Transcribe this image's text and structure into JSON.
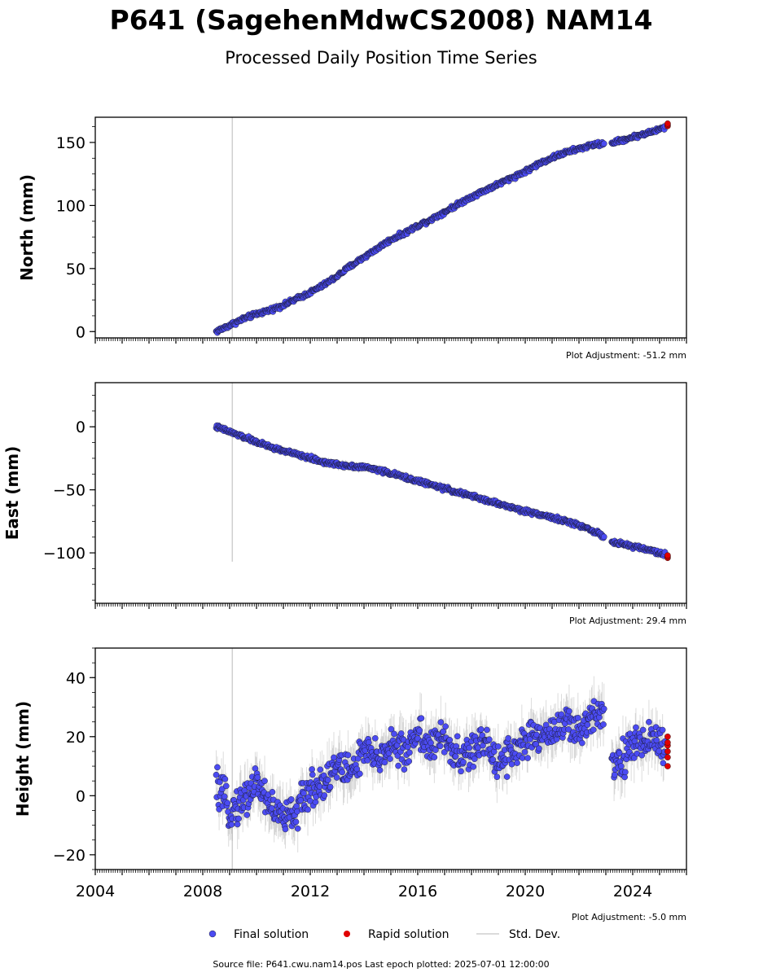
{
  "title": "P641 (SagehenMdwCS2008) NAM14",
  "subtitle": "Processed Daily Position Time Series",
  "colors": {
    "final": "#4b4bf2",
    "rapid": "#e00000",
    "stddev": "#bdbdbd"
  },
  "legend": {
    "final": "Final solution",
    "rapid": "Rapid solution",
    "std": "Std. Dev."
  },
  "footer": "Source file: P641.cwu.nam14.pos  Last epoch plotted: 2025-07-01 12:00:00",
  "chart_data": [
    {
      "type": "scatter",
      "ylabel": "North (mm)",
      "adjustment": "Plot Adjustment: -51.2 mm",
      "xlim": [
        2004,
        2026
      ],
      "ylim": [
        -5,
        170
      ],
      "yticks": [
        0,
        50,
        100,
        150
      ],
      "yticklabels": [
        "0",
        "50",
        "100",
        "150"
      ],
      "xticks": [],
      "xticklabels": [],
      "vline": 2009.1,
      "vline_range": [
        -5,
        170
      ],
      "series": [
        {
          "role": "final",
          "x": [
            2008.5,
            2009,
            2009.5,
            2010,
            2010.5,
            2011,
            2011.5,
            2012,
            2012.5,
            2013,
            2013.5,
            2014,
            2014.5,
            2015,
            2015.5,
            2016,
            2016.5,
            2017,
            2017.5,
            2018,
            2018.5,
            2019,
            2019.5,
            2020,
            2020.5,
            2021,
            2021.5,
            2022,
            2022.5,
            2022.9,
            2023.3,
            2023.8,
            2024.3,
            2024.8,
            2025.2
          ],
          "y": [
            0,
            5,
            10,
            14,
            17,
            21,
            26,
            31,
            37,
            44,
            52,
            59,
            66,
            73,
            78,
            84,
            89,
            95,
            101,
            107,
            112,
            117,
            122,
            127,
            133,
            138,
            142,
            145,
            148,
            149,
            150,
            153,
            156,
            159,
            162
          ]
        },
        {
          "role": "rapid",
          "x": [
            2025.3
          ],
          "y": [
            164
          ]
        }
      ]
    },
    {
      "type": "scatter",
      "ylabel": "East (mm)",
      "adjustment": "Plot Adjustment: 29.4 mm",
      "xlim": [
        2004,
        2026
      ],
      "ylim": [
        -140,
        35
      ],
      "yticks": [
        0,
        -50,
        -100
      ],
      "yticklabels": [
        "0",
        "−50",
        "−100"
      ],
      "xticks": [],
      "xticklabels": [],
      "vline": 2009.1,
      "vline_range": [
        -107,
        35
      ],
      "series": [
        {
          "role": "final",
          "x": [
            2008.5,
            2009,
            2009.5,
            2010,
            2010.5,
            2011,
            2011.5,
            2012,
            2012.5,
            2013,
            2013.5,
            2014,
            2014.5,
            2015,
            2015.5,
            2016,
            2016.5,
            2017,
            2017.5,
            2018,
            2018.5,
            2019,
            2019.5,
            2020,
            2020.5,
            2021,
            2021.5,
            2022,
            2022.5,
            2022.9,
            2023.3,
            2023.8,
            2024.3,
            2024.8,
            2025.2
          ],
          "y": [
            0,
            -4,
            -8,
            -12,
            -16,
            -19,
            -22,
            -25,
            -28,
            -30,
            -31,
            -32,
            -34,
            -37,
            -40,
            -43,
            -46,
            -49,
            -52,
            -55,
            -58,
            -61,
            -64,
            -67,
            -69,
            -72,
            -75,
            -78,
            -82,
            -87,
            -92,
            -94,
            -96,
            -99,
            -101
          ]
        },
        {
          "role": "rapid",
          "x": [
            2025.3
          ],
          "y": [
            -103
          ]
        }
      ]
    },
    {
      "type": "scatter",
      "ylabel": "Height (mm)",
      "adjustment": "Plot Adjustment: -5.0 mm",
      "xlim": [
        2004,
        2026
      ],
      "ylim": [
        -25,
        50
      ],
      "yticks": [
        40,
        20,
        0,
        -20
      ],
      "yticklabels": [
        "40",
        "20",
        "0",
        "−20"
      ],
      "xticks": [
        2004,
        2008,
        2012,
        2016,
        2020,
        2024
      ],
      "xticklabels": [
        "2004",
        "2008",
        "2012",
        "2016",
        "2020",
        "2024"
      ],
      "vline": 2009.1,
      "vline_range": [
        -25,
        50
      ],
      "series": [
        {
          "role": "final",
          "x": [
            2008.5,
            2009,
            2009.5,
            2010,
            2010.5,
            2011,
            2011.5,
            2012,
            2012.5,
            2013,
            2013.5,
            2014,
            2014.5,
            2015,
            2015.5,
            2016,
            2016.5,
            2017,
            2017.5,
            2018,
            2018.5,
            2019,
            2019.5,
            2020,
            2020.5,
            2021,
            2021.5,
            2022,
            2022.5,
            2022.9,
            2023.3,
            2023.8,
            2024.3,
            2024.8,
            2025.2
          ],
          "y": [
            3,
            -5,
            -2,
            5,
            -3,
            -8,
            -5,
            2,
            5,
            10,
            8,
            15,
            12,
            18,
            14,
            22,
            16,
            20,
            12,
            15,
            18,
            12,
            15,
            18,
            20,
            22,
            25,
            20,
            28,
            30,
            10,
            15,
            18,
            20,
            15
          ]
        },
        {
          "role": "rapid",
          "x": [
            2025.3
          ],
          "y": [
            17
          ]
        }
      ]
    }
  ]
}
